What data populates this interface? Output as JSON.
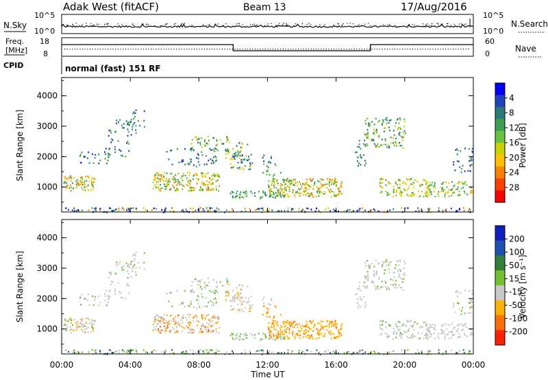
{
  "header": {
    "station": "Adak West (fitACF)",
    "beam": "Beam 13",
    "date": "17/Aug/2016"
  },
  "nsky_panel": {
    "left_label": "N.Sky",
    "right_label": "N.Search",
    "left_ticks": [
      "10^5",
      "10^0"
    ],
    "right_ticks": [
      "10^5",
      "10^0"
    ]
  },
  "freq_panel": {
    "left_label_1": "Freq.",
    "left_label_2": "[MHz]",
    "right_label": "Nave",
    "left_ticks": [
      "18",
      "8"
    ],
    "right_ticks": [
      "60",
      "0"
    ],
    "cpid_label": "CPID",
    "cpid_text": "normal (fast) 151 RF"
  },
  "chart_data": [
    {
      "type": "heatmap",
      "quantity": "Power",
      "ylabel": "Slant Range [km]",
      "ylim": [
        180,
        4600
      ],
      "yticks": [
        "1000",
        "2000",
        "3000",
        "4000"
      ],
      "ytick_values": [
        1000,
        2000,
        3000,
        4000
      ],
      "colorbar_label": "Power [dB]",
      "colorbar_ticks": [
        "4",
        "8",
        "12",
        "16",
        "20",
        "24",
        "28"
      ],
      "colorbar_colors": [
        "#0000ff",
        "#2040c0",
        "#2a7a7a",
        "#3aa050",
        "#6ac040",
        "#c8d000",
        "#ffc000",
        "#ff8000",
        "#ff4000",
        "#ff0000"
      ]
    },
    {
      "type": "heatmap",
      "quantity": "Velocity",
      "ylabel": "Slant Range [km]",
      "ylim": [
        180,
        4600
      ],
      "yticks": [
        "1000",
        "2000",
        "3000",
        "4000"
      ],
      "ytick_values": [
        1000,
        2000,
        3000,
        4000
      ],
      "colorbar_label": "Velocity [m s⁻¹]",
      "colorbar_ticks": [
        "200",
        "100",
        "50",
        "15",
        "-15",
        "-50",
        "-100",
        "-200"
      ],
      "colorbar_colors": [
        "#1020c0",
        "#2050b0",
        "#30803a",
        "#70c030",
        "#c8c8c8",
        "#ffb000",
        "#ff7000",
        "#ff2000"
      ]
    }
  ],
  "xaxis": {
    "label": "Time UT",
    "ticks": [
      "00:00",
      "04:00",
      "08:00",
      "12:00",
      "16:00",
      "20:00",
      "00:00"
    ],
    "tick_hours": [
      0,
      4,
      8,
      12,
      16,
      20,
      24
    ]
  }
}
